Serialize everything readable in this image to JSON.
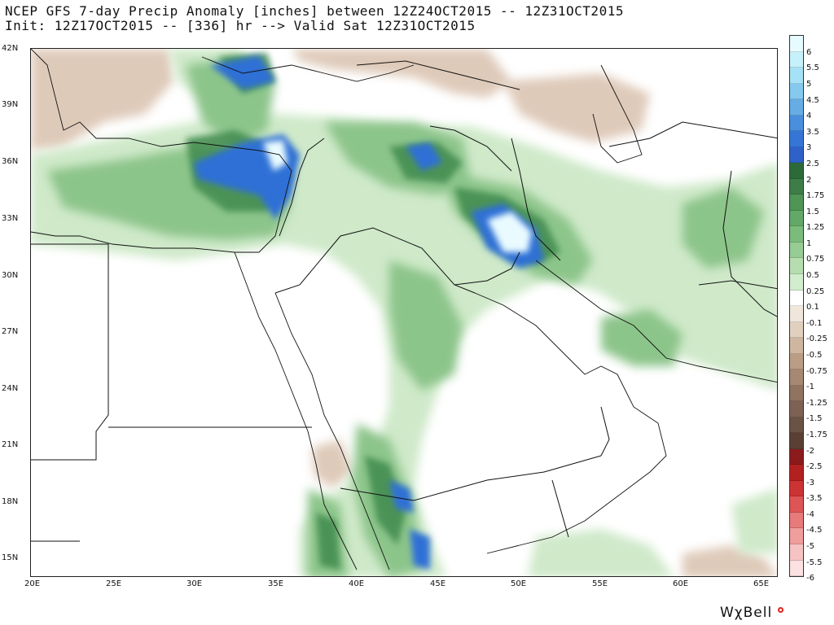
{
  "header": {
    "title_line1": "NCEP GFS 7-day Precip Anomaly [inches] between 12Z24OCT2015 -- 12Z31OCT2015",
    "title_line2": "Init: 12Z17OCT2015 -- [336] hr --> Valid Sat 12Z31OCT2015"
  },
  "map": {
    "lat_labels": [
      "42N",
      "39N",
      "36N",
      "33N",
      "30N",
      "27N",
      "24N",
      "21N",
      "18N",
      "15N"
    ],
    "lon_labels": [
      "20E",
      "25E",
      "30E",
      "35E",
      "40E",
      "45E",
      "50E",
      "55E",
      "60E",
      "65E"
    ],
    "extent": {
      "lon": [
        20,
        66
      ],
      "lat": [
        14,
        42
      ]
    }
  },
  "colorbar": {
    "labels": [
      "6",
      "5.5",
      "5",
      "4.5",
      "4",
      "3.5",
      "3",
      "2.5",
      "2",
      "1.75",
      "1.5",
      "1.25",
      "1",
      "0.75",
      "0.5",
      "0.25",
      "0.1",
      "-0.1",
      "-0.25",
      "-0.5",
      "-0.75",
      "-1",
      "-1.25",
      "-1.5",
      "-1.75",
      "-2",
      "-2.5",
      "-3",
      "-3.5",
      "-4",
      "-4.5",
      "-5",
      "-5.5",
      "-6"
    ],
    "colors": [
      "#e6fbff",
      "#c6f1fb",
      "#a6e2f6",
      "#86c9ef",
      "#66ade6",
      "#4a8fdd",
      "#3575d6",
      "#2f62c8",
      "#2d6a3a",
      "#3e7d48",
      "#4f9556",
      "#63a868",
      "#7bbb7c",
      "#97cc94",
      "#b5ddb0",
      "#d2ecce",
      "#ffffff",
      "#f0e6dc",
      "#e2d0bf",
      "#cfb6a0",
      "#bb9d85",
      "#a78872",
      "#917362",
      "#7d6253",
      "#6a5245",
      "#5a3f34",
      "#8b1a1a",
      "#b22020",
      "#cc3333",
      "#dd5555",
      "#e77a7a",
      "#ef9d9d",
      "#f6c3c3",
      "#fbe1e1"
    ]
  },
  "brand": {
    "name": "WχBell"
  },
  "colors": {
    "border": "#222222",
    "wet_light": "#cfe9c9",
    "wet_mid": "#8cc58a",
    "wet_dark": "#3f8a4e",
    "heavy_blue": "#2f6fd6",
    "extreme": "#e9fbff",
    "dry": "#d9c1ad"
  }
}
